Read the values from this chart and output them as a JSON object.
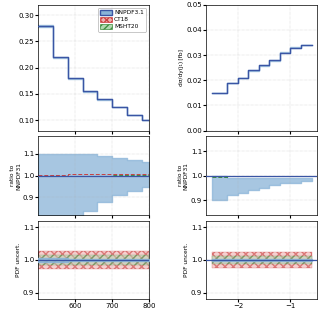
{
  "left_col": {
    "top": {
      "xlim": [
        500,
        800
      ],
      "x_bins": [
        500,
        540,
        580,
        620,
        660,
        700,
        740,
        780,
        800
      ],
      "y_vals_main": [
        0.28,
        0.22,
        0.18,
        0.155,
        0.14,
        0.125,
        0.11,
        0.1
      ],
      "ylim": [
        0.08,
        0.32
      ],
      "x_ticks": [
        600,
        700,
        800
      ],
      "y_ticks": [
        0.1,
        0.15,
        0.2,
        0.25,
        0.3
      ]
    },
    "mid": {
      "xlim": [
        500,
        800
      ],
      "ylim": [
        0.82,
        1.18
      ],
      "x_ticks": [
        600,
        700,
        800
      ],
      "y_ticks": [
        0.9,
        1.0,
        1.1
      ],
      "band_bottom": [
        0.75,
        0.75,
        0.79,
        0.84,
        0.88,
        0.91,
        0.93,
        0.95
      ],
      "band_top": [
        1.1,
        1.1,
        1.1,
        1.1,
        1.09,
        1.08,
        1.07,
        1.06
      ],
      "ratio_ct18": [
        1.003,
        1.004,
        1.005,
        1.006,
        1.006,
        1.007,
        1.008,
        1.009
      ],
      "ratio_msht": [
        0.997,
        0.998,
        0.999,
        1.0,
        1.0,
        1.001,
        1.002,
        1.003
      ]
    },
    "bot": {
      "xlim": [
        500,
        800
      ],
      "ylim": [
        0.88,
        1.12
      ],
      "x_ticks": [
        600,
        700,
        800
      ],
      "y_ticks": [
        0.9,
        1.0,
        1.1
      ],
      "nnpdf_band_bot": [
        0.995,
        0.995,
        0.996,
        0.996,
        0.997,
        0.997,
        0.997,
        0.997
      ],
      "nnpdf_band_top": [
        1.005,
        1.005,
        1.004,
        1.004,
        1.003,
        1.003,
        1.003,
        1.003
      ],
      "ct18_band_bot": [
        0.972,
        0.972,
        0.972,
        0.972,
        0.972,
        0.972,
        0.972,
        0.972
      ],
      "ct18_band_top": [
        1.028,
        1.028,
        1.028,
        1.028,
        1.028,
        1.028,
        1.028,
        1.028
      ],
      "msht_band_bot": [
        0.984,
        0.984,
        0.984,
        0.984,
        0.984,
        0.984,
        0.984,
        0.984
      ],
      "msht_band_top": [
        1.016,
        1.016,
        1.016,
        1.016,
        1.016,
        1.016,
        1.016,
        1.016
      ]
    }
  },
  "right_col": {
    "top": {
      "xlim": [
        -2.6,
        -0.5
      ],
      "ylim": [
        0.0,
        0.05
      ],
      "x_bins": [
        -2.5,
        -2.2,
        -2.0,
        -1.8,
        -1.6,
        -1.4,
        -1.2,
        -1.0,
        -0.8,
        -0.6
      ],
      "y_vals_main": [
        0.015,
        0.019,
        0.021,
        0.024,
        0.026,
        0.028,
        0.031,
        0.033,
        0.034
      ],
      "x_ticks": [
        -2,
        -1
      ],
      "y_ticks": [
        0.0,
        0.01,
        0.02,
        0.03,
        0.04,
        0.05
      ],
      "ylabel": "dσ/dy(j₁) [fb]"
    },
    "mid": {
      "xlim": [
        -2.6,
        -0.5
      ],
      "ylim": [
        0.84,
        1.16
      ],
      "x_ticks": [
        -2,
        -1
      ],
      "y_ticks": [
        0.9,
        1.0,
        1.1
      ],
      "band_bottom": [
        0.9,
        0.92,
        0.93,
        0.94,
        0.95,
        0.96,
        0.97,
        0.97,
        0.98
      ],
      "band_top": [
        1.0,
        0.99,
        0.99,
        0.99,
        0.99,
        0.99,
        0.99,
        0.99,
        0.99
      ],
      "ratio_ct18": [
        0.997,
        0.998,
        0.999,
        1.0,
        1.0,
        1.0,
        1.0,
        1.0,
        1.0
      ],
      "ratio_msht": [
        0.996,
        0.997,
        0.998,
        0.999,
        0.999,
        1.0,
        1.0,
        1.0,
        1.0
      ],
      "ylabel": "ratio to\nNNPDF31"
    },
    "bot": {
      "xlim": [
        -2.6,
        -0.5
      ],
      "ylim": [
        0.88,
        1.12
      ],
      "x_ticks": [
        -2,
        -1
      ],
      "y_ticks": [
        0.9,
        1.0,
        1.1
      ],
      "nnpdf_band_bot": [
        0.996,
        0.996,
        0.997,
        0.997,
        0.997,
        0.998,
        0.998,
        0.998,
        0.998
      ],
      "nnpdf_band_top": [
        1.004,
        1.004,
        1.003,
        1.003,
        1.003,
        1.002,
        1.002,
        1.002,
        1.002
      ],
      "ct18_band_bot": [
        0.975,
        0.975,
        0.975,
        0.975,
        0.975,
        0.975,
        0.975,
        0.975,
        0.975
      ],
      "ct18_band_top": [
        1.025,
        1.025,
        1.025,
        1.025,
        1.025,
        1.025,
        1.025,
        1.025,
        1.025
      ],
      "msht_band_bot": [
        0.988,
        0.988,
        0.988,
        0.988,
        0.988,
        0.988,
        0.988,
        0.988,
        0.988
      ],
      "msht_band_top": [
        1.012,
        1.012,
        1.012,
        1.012,
        1.012,
        1.012,
        1.012,
        1.012,
        1.012
      ],
      "ylabel": "PDF uncert."
    }
  },
  "colors": {
    "nnpdf": "#3a55a4",
    "nnpdf_band": "#8ab4d8",
    "ct18": "#c94040",
    "ct18_fill": "#f0b0b0",
    "msht": "#3d8c3d",
    "msht_fill": "#b0d8b0"
  }
}
